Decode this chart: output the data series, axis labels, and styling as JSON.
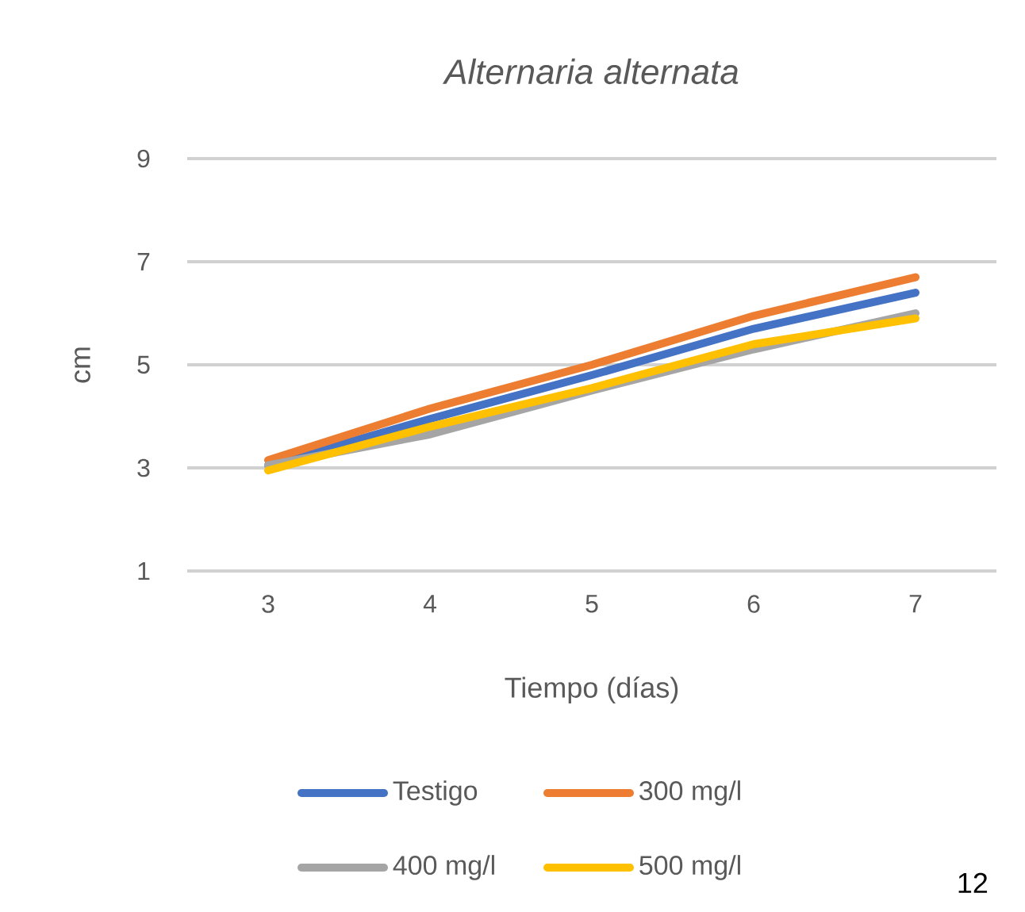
{
  "chart_data": {
    "type": "line",
    "title": "*Alternaria alternata*",
    "xlabel": "Tiempo (días)",
    "ylabel": "cm",
    "categories": [
      "3",
      "4",
      "5",
      "6",
      "7"
    ],
    "series": [
      {
        "name": "Testigo",
        "color": "#4472c4",
        "values": [
          3.05,
          3.95,
          4.8,
          5.7,
          6.4
        ]
      },
      {
        "name": "300 mg/l",
        "color": "#ed7d31",
        "values": [
          3.15,
          4.15,
          5.0,
          5.95,
          6.7
        ]
      },
      {
        "name": "400 mg/l",
        "color": "#a5a5a5",
        "values": [
          3.05,
          3.65,
          4.5,
          5.3,
          6.0
        ]
      },
      {
        "name": "500 mg/l",
        "color": "#ffc000",
        "values": [
          2.95,
          3.8,
          4.55,
          5.4,
          5.9
        ]
      }
    ],
    "ylim": [
      1,
      9
    ],
    "yticks": [
      1,
      3,
      5,
      7,
      9
    ],
    "grid": "y",
    "legend": "bottom",
    "marker": "none",
    "line_style": "solid",
    "annotations": [
      "12"
    ]
  }
}
